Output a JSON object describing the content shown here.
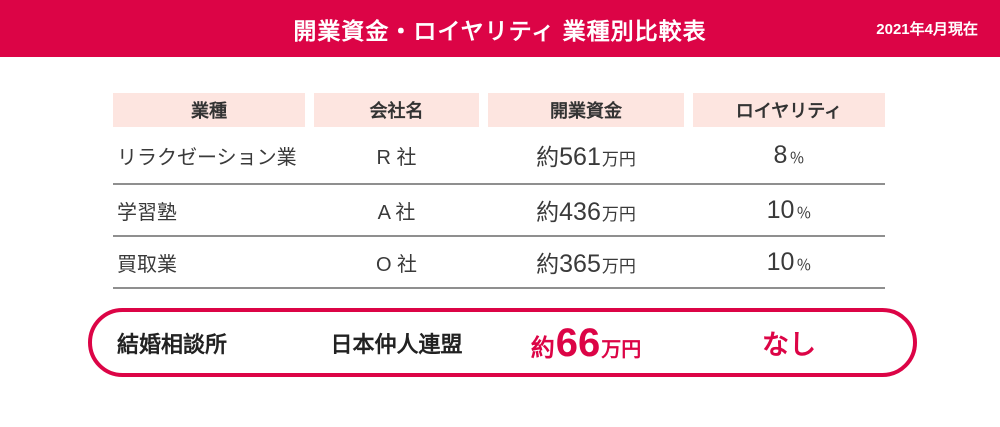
{
  "banner": {
    "title": "開業資金・ロイヤリティ 業種別比較表",
    "date_note": "2021年4月現在",
    "bg_color": "#dc0446",
    "text_color": "#ffffff"
  },
  "table": {
    "header_bg": "#fde5e0",
    "separator_color": "#8f8f8f",
    "headers": {
      "industry": "業種",
      "company": "会社名",
      "capital": "開業資金",
      "royalty": "ロイヤリティ"
    },
    "rows": [
      {
        "industry": "リラクゼーション業",
        "company": "R 社",
        "capital_prefix": "約",
        "capital_value": "561",
        "capital_unit": "万円",
        "royalty_value": "8",
        "royalty_unit": "％"
      },
      {
        "industry": "学習塾",
        "company": "A 社",
        "capital_prefix": "約",
        "capital_value": "436",
        "capital_unit": "万円",
        "royalty_value": "10",
        "royalty_unit": "％"
      },
      {
        "industry": "買取業",
        "company": "O 社",
        "capital_prefix": "約",
        "capital_value": "365",
        "capital_unit": "万円",
        "royalty_value": "10",
        "royalty_unit": "％"
      }
    ],
    "highlight_row": {
      "industry": "結婚相談所",
      "company": "日本仲人連盟",
      "capital_prefix": "約",
      "capital_value": "66",
      "capital_unit": "万円",
      "royalty": "なし",
      "accent_color": "#dc0446"
    }
  }
}
